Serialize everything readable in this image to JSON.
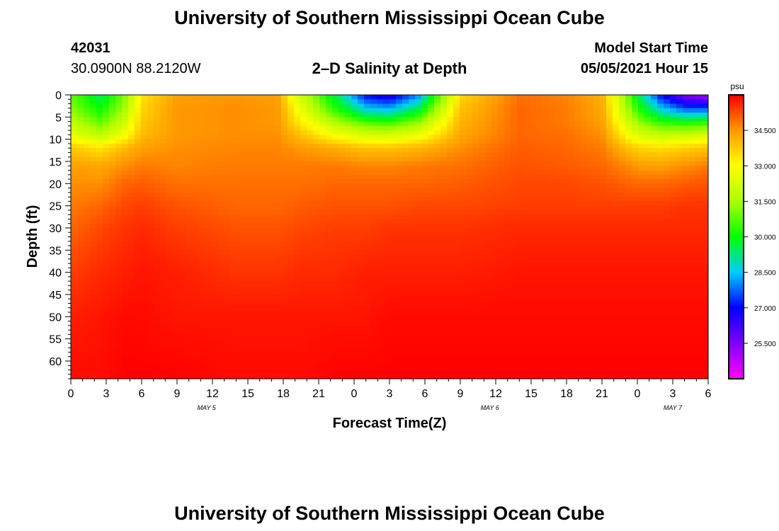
{
  "page": {
    "title_top": "University of Southern Mississippi Ocean Cube",
    "title_bottom": "University of Southern Mississippi Ocean Cube",
    "station_id": "42031",
    "station_coords": "30.0900N  88.2120W",
    "plot_title": "2–D Salinity at Depth",
    "model_start_label": "Model Start Time",
    "model_start_value": "05/05/2021 Hour 15"
  },
  "chart_data": {
    "type": "heatmap",
    "title": "2–D Salinity at Depth",
    "xlabel": "Forecast Time(Z)",
    "ylabel": "Depth (ft)",
    "x_range_hours": [
      0,
      54
    ],
    "y_range_ft": [
      0,
      64
    ],
    "x_ticks": [
      "0",
      "3",
      "6",
      "9",
      "12",
      "15",
      "18",
      "21",
      "0",
      "3",
      "6",
      "9",
      "12",
      "15",
      "18",
      "21",
      "0",
      "3",
      "6"
    ],
    "y_ticks": [
      "0",
      "5",
      "10",
      "15",
      "20",
      "25",
      "30",
      "35",
      "40",
      "45",
      "50",
      "55",
      "60"
    ],
    "date_labels": [
      {
        "label": "MAY 5",
        "hour": 11.5
      },
      {
        "label": "MAY 6",
        "hour": 35.5
      },
      {
        "label": "MAY 7",
        "hour": 51
      }
    ],
    "colorbar": {
      "unit": "psu",
      "range": [
        24.0,
        36.0
      ],
      "ticks": [
        "34.500",
        "33.000",
        "31.500",
        "30.000",
        "28.500",
        "27.000",
        "25.500"
      ]
    },
    "salinity_grid": {
      "times_h": [
        0,
        2.5,
        4.5,
        6,
        9,
        14,
        17.5,
        19.5,
        22.5,
        25,
        27,
        29.5,
        33,
        38,
        42,
        45,
        47.5,
        48.5,
        50,
        52,
        54
      ],
      "depths_ft": [
        0,
        3,
        6,
        9,
        12,
        16,
        20,
        25,
        30,
        40,
        50,
        64
      ],
      "values_psu": [
        [
          30.8,
          29.5,
          31.0,
          33.4,
          34.4,
          34.5,
          34.4,
          32.0,
          29.5,
          27.0,
          26.5,
          28.0,
          33.6,
          34.9,
          34.7,
          34.2,
          30.5,
          29.0,
          27.0,
          25.5,
          25.0
        ],
        [
          31.2,
          30.0,
          31.4,
          33.6,
          34.5,
          34.6,
          34.5,
          32.6,
          30.2,
          28.5,
          28.2,
          29.5,
          33.9,
          35.0,
          34.8,
          34.3,
          31.0,
          29.8,
          28.5,
          27.5,
          27.5
        ],
        [
          31.8,
          30.8,
          32.0,
          33.8,
          34.5,
          34.6,
          34.5,
          33.2,
          31.5,
          30.5,
          30.3,
          31.2,
          34.1,
          35.0,
          34.8,
          34.4,
          31.8,
          31.0,
          30.3,
          30.0,
          30.2
        ],
        [
          32.6,
          31.8,
          32.8,
          34.0,
          34.5,
          34.6,
          34.6,
          33.9,
          32.8,
          32.3,
          32.2,
          32.7,
          34.3,
          35.0,
          34.9,
          34.6,
          32.7,
          32.2,
          31.9,
          32.0,
          32.3
        ],
        [
          33.8,
          33.4,
          34.0,
          34.4,
          34.6,
          34.7,
          34.7,
          34.5,
          34.2,
          33.9,
          33.9,
          34.1,
          34.6,
          35.1,
          35.0,
          34.8,
          33.8,
          33.6,
          33.5,
          33.7,
          33.9
        ],
        [
          34.4,
          34.3,
          34.6,
          34.8,
          34.7,
          34.8,
          34.8,
          34.8,
          34.8,
          34.7,
          34.7,
          34.8,
          34.9,
          35.2,
          35.1,
          35.0,
          34.6,
          34.4,
          34.4,
          34.6,
          34.8
        ],
        [
          34.6,
          34.6,
          35.0,
          35.1,
          34.9,
          34.9,
          34.9,
          34.9,
          35.0,
          35.0,
          35.0,
          35.0,
          35.1,
          35.3,
          35.3,
          35.2,
          35.0,
          35.0,
          35.0,
          35.1,
          35.2
        ],
        [
          34.8,
          35.0,
          35.3,
          35.4,
          35.2,
          35.0,
          35.0,
          35.1,
          35.2,
          35.2,
          35.2,
          35.3,
          35.3,
          35.4,
          35.4,
          35.4,
          35.4,
          35.4,
          35.4,
          35.5,
          35.5
        ],
        [
          35.0,
          35.3,
          35.5,
          35.6,
          35.4,
          35.2,
          35.2,
          35.3,
          35.4,
          35.4,
          35.5,
          35.5,
          35.5,
          35.6,
          35.6,
          35.6,
          35.6,
          35.6,
          35.6,
          35.6,
          35.6
        ],
        [
          35.4,
          35.6,
          35.7,
          35.8,
          35.7,
          35.5,
          35.5,
          35.6,
          35.6,
          35.7,
          35.7,
          35.7,
          35.7,
          35.8,
          35.8,
          35.8,
          35.8,
          35.8,
          35.8,
          35.8,
          35.8
        ],
        [
          35.7,
          35.8,
          35.9,
          35.9,
          35.8,
          35.8,
          35.8,
          35.8,
          35.8,
          35.8,
          35.9,
          35.9,
          35.9,
          35.9,
          35.9,
          35.9,
          35.9,
          35.9,
          35.9,
          35.9,
          35.9
        ],
        [
          35.9,
          35.9,
          36.0,
          36.0,
          36.0,
          35.9,
          35.9,
          35.9,
          36.0,
          36.0,
          36.0,
          36.0,
          36.0,
          36.0,
          36.0,
          36.0,
          36.0,
          36.0,
          36.0,
          36.0,
          36.0
        ]
      ]
    }
  }
}
